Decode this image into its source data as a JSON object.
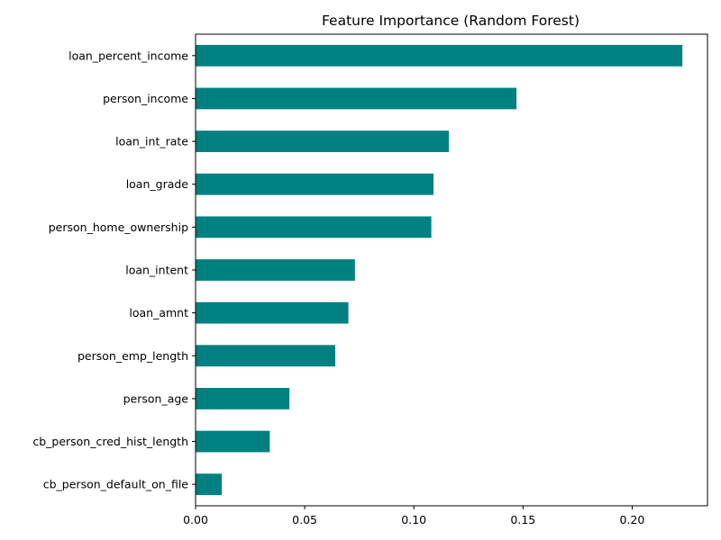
{
  "chart_data": {
    "type": "bar",
    "orientation": "horizontal",
    "title": "Feature Importance (Random Forest)",
    "xlabel": "",
    "ylabel": "",
    "categories": [
      "loan_percent_income",
      "person_income",
      "loan_int_rate",
      "loan_grade",
      "person_home_ownership",
      "loan_intent",
      "loan_amnt",
      "person_emp_length",
      "person_age",
      "cb_person_cred_hist_length",
      "cb_person_default_on_file"
    ],
    "values": [
      0.223,
      0.147,
      0.116,
      0.109,
      0.108,
      0.073,
      0.07,
      0.064,
      0.043,
      0.034,
      0.012
    ],
    "xlim": [
      0,
      0.2345
    ],
    "xticks": [
      0.0,
      0.05,
      0.1,
      0.15,
      0.2
    ],
    "xtick_labels": [
      "0.00",
      "0.05",
      "0.10",
      "0.15",
      "0.20"
    ],
    "bar_color": "#008080",
    "grid": false,
    "legend": "none"
  }
}
